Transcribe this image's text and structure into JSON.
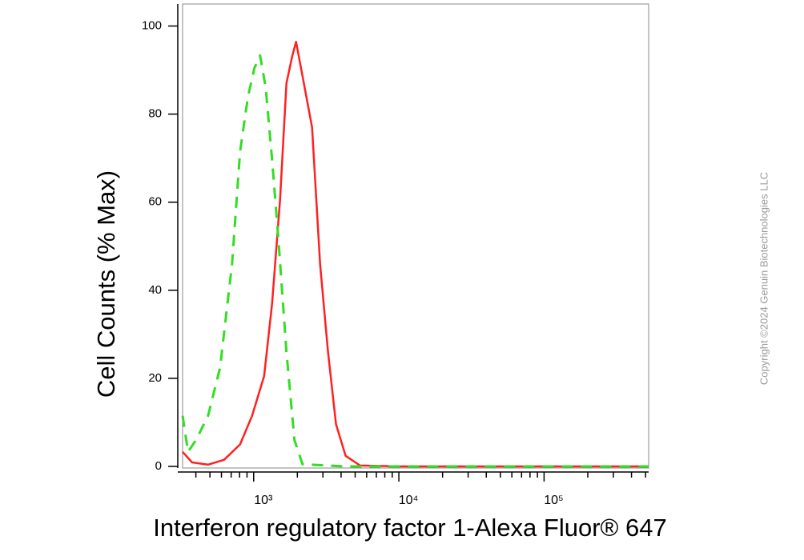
{
  "chart_data": {
    "type": "line",
    "xlabel": "Interferon regulatory factor 1-Alexa Fluor® 647",
    "ylabel": "Cell Counts (% Max)",
    "annotation": "Copyright ©2024 Genuin Biotechnologies LLC",
    "xscale": "log",
    "xlim": [
      324,
      525000
    ],
    "ylim": [
      0,
      105
    ],
    "xticks": [
      {
        "value": 1000,
        "label": "10³"
      },
      {
        "value": 10000,
        "label": "10⁴"
      },
      {
        "value": 100000,
        "label": "10⁵"
      }
    ],
    "xminorticks": [
      400,
      500,
      600,
      700,
      800,
      900,
      2000,
      3000,
      4000,
      5000,
      6000,
      7000,
      8000,
      9000,
      20000,
      30000,
      40000,
      50000,
      60000,
      70000,
      80000,
      90000,
      200000,
      300000,
      400000,
      500000
    ],
    "yticks": [
      0,
      20,
      40,
      60,
      80,
      100
    ],
    "series": [
      {
        "color": "#ff2020",
        "dash": false,
        "x": [
          324,
          377,
          485,
          626,
          806,
          975,
          1180,
          1340,
          1520,
          1683,
          1838,
          1960,
          2168,
          2524,
          2866,
          3252,
          3690,
          4300,
          5400,
          10180,
          525000
        ],
        "values": [
          3.3,
          0.9,
          0.4,
          1.5,
          5,
          11.5,
          20.5,
          37,
          60.5,
          87,
          93,
          96.4,
          88.7,
          77,
          46,
          26,
          9.6,
          2.4,
          0.2,
          0,
          0
        ]
      },
      {
        "color": "#33dd22",
        "dash": true,
        "x": [
          324,
          353,
          401,
          485,
          587,
          710,
          806,
          914,
          1013,
          1107,
          1210,
          1340,
          1482,
          1683,
          1910,
          2168,
          4200,
          525000
        ],
        "values": [
          11.5,
          3.3,
          6,
          11.5,
          22.4,
          46,
          71.5,
          84,
          90.5,
          93.3,
          86,
          69.6,
          51.5,
          26,
          6,
          0.5,
          0,
          0
        ]
      }
    ]
  }
}
